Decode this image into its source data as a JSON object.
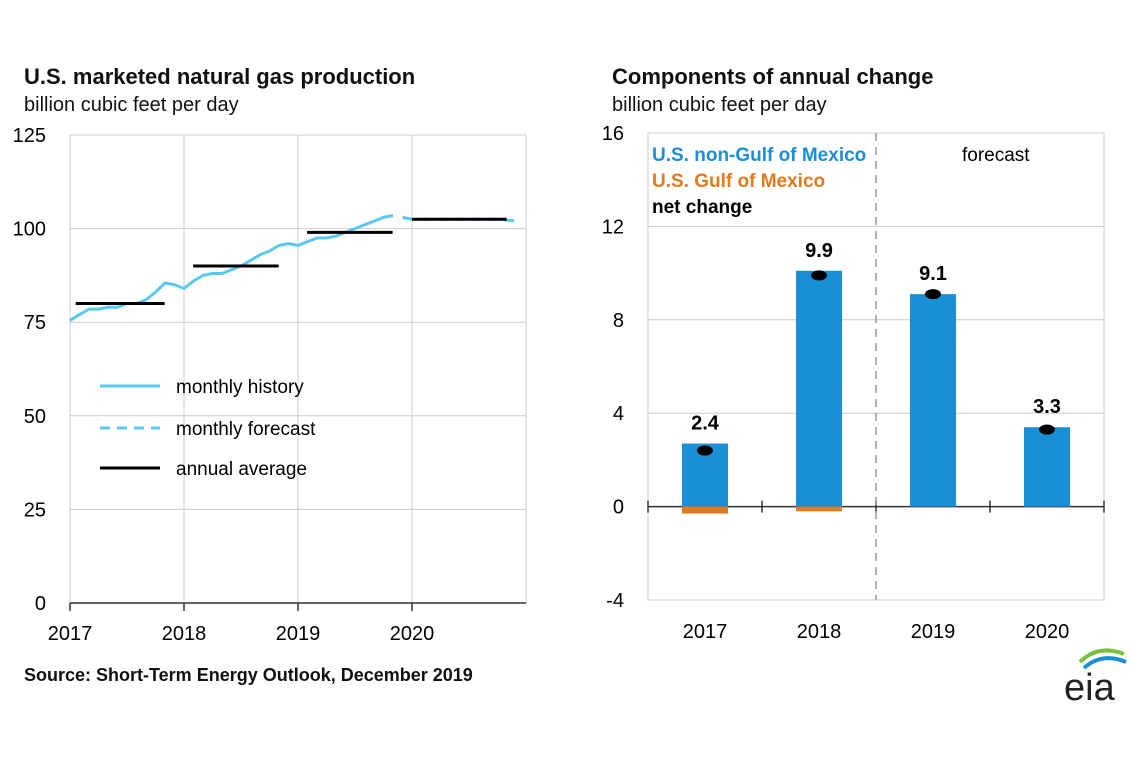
{
  "left_chart": {
    "title": "U.S. marketed natural gas production",
    "subtitle": "billion cubic feet per day",
    "legend": [
      "monthly history",
      "monthly forecast",
      "annual average"
    ]
  },
  "right_chart": {
    "title": "Components of annual change",
    "subtitle": "billion cubic  feet per day",
    "forecast_label": "forecast",
    "legend": [
      "U.S. non-Gulf of Mexico",
      "U.S. Gulf of Mexico",
      "net change"
    ]
  },
  "source": "Source: Short-Term Energy Outlook, December 2019",
  "logo_text": "eia",
  "colors": {
    "history": "#5bc8f0",
    "nongulf": "#1a8fd6",
    "gulf": "#e07b24",
    "net": "#000000",
    "grid": "#cccccc"
  },
  "chart_data": [
    {
      "type": "line",
      "title": "U.S. marketed natural gas production",
      "ylabel": "billion cubic feet per day",
      "ylim": [
        0,
        125
      ],
      "yticks": [
        0,
        25,
        50,
        75,
        100,
        125
      ],
      "xlim": [
        2017,
        2021
      ],
      "xticks": [
        "2017",
        "2018",
        "2019",
        "2020"
      ],
      "grid": true,
      "legend_position": "middle-left",
      "series": [
        {
          "name": "monthly history",
          "style": "solid",
          "x": [
            2017.0,
            2017.083,
            2017.167,
            2017.25,
            2017.333,
            2017.417,
            2017.5,
            2017.583,
            2017.667,
            2017.75,
            2017.833,
            2017.917,
            2018.0,
            2018.083,
            2018.167,
            2018.25,
            2018.333,
            2018.417,
            2018.5,
            2018.583,
            2018.667,
            2018.75,
            2018.833,
            2018.917,
            2019.0,
            2019.083,
            2019.167,
            2019.25,
            2019.333,
            2019.417,
            2019.5,
            2019.583,
            2019.667,
            2019.75,
            2019.833
          ],
          "y": [
            75.5,
            77,
            78.5,
            78.5,
            79,
            79,
            80,
            80,
            81,
            83,
            85.5,
            85,
            84,
            86,
            87.5,
            88,
            88,
            89,
            90,
            91.5,
            93,
            94,
            95.5,
            96,
            95.5,
            96.5,
            97.5,
            97.5,
            98,
            99,
            100,
            101,
            102,
            103,
            103.5
          ]
        },
        {
          "name": "monthly forecast",
          "style": "dashed",
          "x": [
            2019.917,
            2020.0,
            2020.25,
            2020.5,
            2020.75,
            2020.917
          ],
          "y": [
            103,
            102.5,
            102.5,
            102.5,
            102.5,
            102
          ]
        },
        {
          "name": "annual average",
          "style": "segments",
          "segments": [
            {
              "x": [
                2017.05,
                2017.83
              ],
              "y": 80
            },
            {
              "x": [
                2018.08,
                2018.83
              ],
              "y": 90
            },
            {
              "x": [
                2019.08,
                2019.83
              ],
              "y": 99
            },
            {
              "x": [
                2020.0,
                2020.83
              ],
              "y": 102.5
            }
          ]
        }
      ]
    },
    {
      "type": "bar",
      "title": "Components of annual change",
      "ylabel": "billion cubic  feet per day",
      "ylim": [
        -4,
        16
      ],
      "yticks": [
        -4,
        0,
        4,
        8,
        12,
        16
      ],
      "categories": [
        "2017",
        "2018",
        "2019",
        "2020"
      ],
      "forecast_after_index": 1,
      "grid": true,
      "legend_position": "top-left",
      "series": [
        {
          "name": "U.S. non-Gulf of Mexico",
          "values": [
            2.7,
            10.1,
            9.1,
            3.4
          ]
        },
        {
          "name": "U.S. Gulf of Mexico",
          "values": [
            -0.3,
            -0.2,
            0.0,
            0.0
          ]
        },
        {
          "name": "net change",
          "values": [
            2.4,
            9.9,
            9.1,
            3.3
          ],
          "labels": [
            "2.4",
            "9.9",
            "9.1",
            "3.3"
          ]
        }
      ]
    }
  ]
}
